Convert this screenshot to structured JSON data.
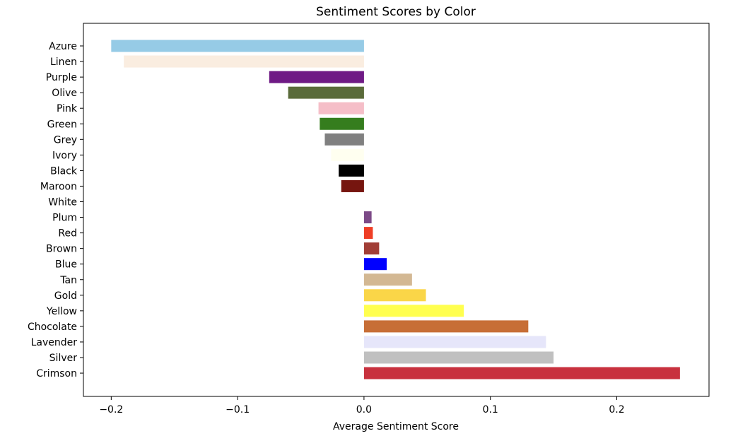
{
  "chart_data": {
    "type": "bar",
    "orientation": "horizontal",
    "title": "Sentiment Scores by Color",
    "xlabel": "Average Sentiment Score",
    "ylabel": "",
    "xlim": [
      -0.222,
      0.273
    ],
    "xticks": [
      -0.2,
      -0.1,
      0.0,
      0.1,
      0.2
    ],
    "xtick_labels": [
      "−0.2",
      "−0.1",
      "0.0",
      "0.1",
      "0.2"
    ],
    "grid": false,
    "categories": [
      "Azure",
      "Linen",
      "Purple",
      "Olive",
      "Pink",
      "Green",
      "Grey",
      "Ivory",
      "Black",
      "Maroon",
      "White",
      "Plum",
      "Red",
      "Brown",
      "Blue",
      "Tan",
      "Gold",
      "Yellow",
      "Chocolate",
      "Lavender",
      "Silver",
      "Crimson"
    ],
    "values": [
      -0.2,
      -0.19,
      -0.075,
      -0.06,
      -0.036,
      -0.035,
      -0.031,
      -0.026,
      -0.02,
      -0.018,
      0.0,
      0.006,
      0.007,
      0.012,
      0.018,
      0.038,
      0.049,
      0.079,
      0.13,
      0.144,
      0.15,
      0.25
    ],
    "colors": [
      "#96cbe6",
      "#faede0",
      "#6f1a85",
      "#5a6b3a",
      "#f5bec8",
      "#357d1e",
      "#808080",
      "#fffff0",
      "#000000",
      "#76150f",
      "#ffffff",
      "#7c4a87",
      "#ef3e25",
      "#a13e36",
      "#0000ff",
      "#d3b893",
      "#fad648",
      "#ffff4f",
      "#c76e36",
      "#e6e6fa",
      "#c0c0c0",
      "#c8313e"
    ]
  }
}
